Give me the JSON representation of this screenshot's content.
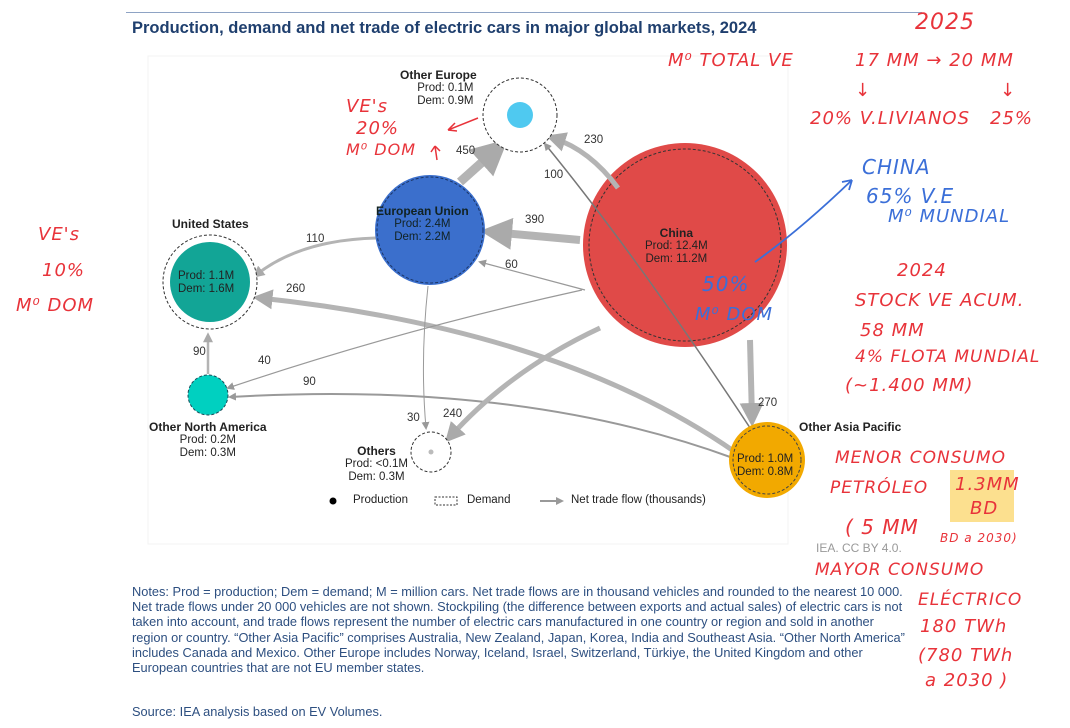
{
  "title": "Production, demand and net trade of electric cars in major global markets, 2024",
  "nodes": {
    "other_europe": {
      "name": "Other Europe",
      "prod": "Prod: 0.1M",
      "dem": "Dem: 0.9M",
      "color": "#4fc9f0"
    },
    "eu": {
      "name": "European Union",
      "prod": "Prod: 2.4M",
      "dem": "Dem: 2.2M",
      "color": "#3b6fcc"
    },
    "china": {
      "name": "China",
      "prod": "Prod: 12.4M",
      "dem": "Dem: 11.2M",
      "color": "#e04a48"
    },
    "us": {
      "name": "United States",
      "prod": "Prod: 1.1M",
      "dem": "Dem: 1.6M",
      "color": "#12a596"
    },
    "other_north_america": {
      "name": "Other North America",
      "prod": "Prod: 0.2M",
      "dem": "Dem: 0.3M",
      "color": "#00d0c0"
    },
    "others": {
      "name": "Others",
      "prod": "Prod: <0.1M",
      "dem": "Dem: 0.3M",
      "color": "#bbbbbb"
    },
    "other_asia_pacific": {
      "name": "Other Asia Pacific",
      "prod": "Prod: 1.0M",
      "dem": "Dem: 0.8M",
      "color": "#f2a900"
    }
  },
  "flows": [
    {
      "from": "eu",
      "to": "other_europe",
      "value": "450"
    },
    {
      "from": "china",
      "to": "other_europe",
      "value": "230"
    },
    {
      "from": "other_asia_pacific",
      "to": "other_europe",
      "value": "100"
    },
    {
      "from": "china",
      "to": "eu",
      "value": "390"
    },
    {
      "from": "eu",
      "to": "us",
      "value": "110"
    },
    {
      "from": "china",
      "to": "eu",
      "value": "60"
    },
    {
      "from": "other_asia_pacific",
      "to": "us",
      "value": "260"
    },
    {
      "from": "other_north_america",
      "to": "us",
      "value": "90"
    },
    {
      "from": "china",
      "to": "other_north_america",
      "value": "40"
    },
    {
      "from": "other_asia_pacific",
      "to": "other_north_america",
      "value": "90"
    },
    {
      "from": "eu",
      "to": "others",
      "value": "30"
    },
    {
      "from": "china",
      "to": "others",
      "value": "240"
    },
    {
      "from": "china",
      "to": "other_asia_pacific",
      "value": "270"
    }
  ],
  "legend": {
    "production": "Production",
    "demand": "Demand",
    "flow": "Net trade flow (thousands)"
  },
  "credit": "IEA. CC BY 4.0.",
  "notes": "Notes: Prod = production; Dem = demand; M = million cars. Net trade flows are in thousand vehicles and rounded to the nearest 10 000. Net trade flows under 20 000 vehicles are not shown. Stockpiling (the difference between exports and actual sales) of electric cars is not taken into account, and trade flows represent the number of electric cars manufactured in one country or region and sold in another region or country. “Other Asia Pacific” comprises Australia, New Zealand, Japan, Korea, India and Southeast Asia. “Other North America” includes Canada and Mexico. Other Europe includes Norway, Iceland, Israel, Switzerland, Türkiye, the United Kingdom and other European countries that are not EU member states.",
  "source": "Source: IEA analysis based on EV Volumes.",
  "annotations": {
    "a2025": "2025",
    "market_total": "M⁰ TOTAL VE",
    "from_to": "17 MM → 20 MM",
    "arrow1": "↓",
    "arrow2": "↓",
    "pct20": "20% V.LIVIANOS",
    "pct25": "25%",
    "china_1": "CHINA",
    "china_2": "65% V.E",
    "china_3": "M⁰ MUNDIAL",
    "china_in_1": "50%",
    "china_in_2": "M⁰ DOM",
    "a2024": "2024",
    "stock_1": "STOCK VE ACUM.",
    "stock_2": "58 MM",
    "stock_3": "4% FLOTA MUNDIAL",
    "stock_4": "(~1.400 MM)",
    "oil_1": "MENOR CONSUMO",
    "oil_2": "PETRÓLEO",
    "oil_3": "1.3MM",
    "oil_4": "BD",
    "oil_5": "( 5 MM",
    "oil_6": "BD a 2030)",
    "elec_1": "MAYOR CONSUMO",
    "elec_2": "ELÉCTRICO",
    "elec_3": "180 TWh",
    "elec_4": "(780 TWh",
    "elec_5": "a 2030 )",
    "eu_1": "VE's",
    "eu_2": "20%",
    "eu_3": "M⁰ DOM",
    "us_1": "VE's",
    "us_2": "10%",
    "us_3": "M⁰ DOM"
  }
}
